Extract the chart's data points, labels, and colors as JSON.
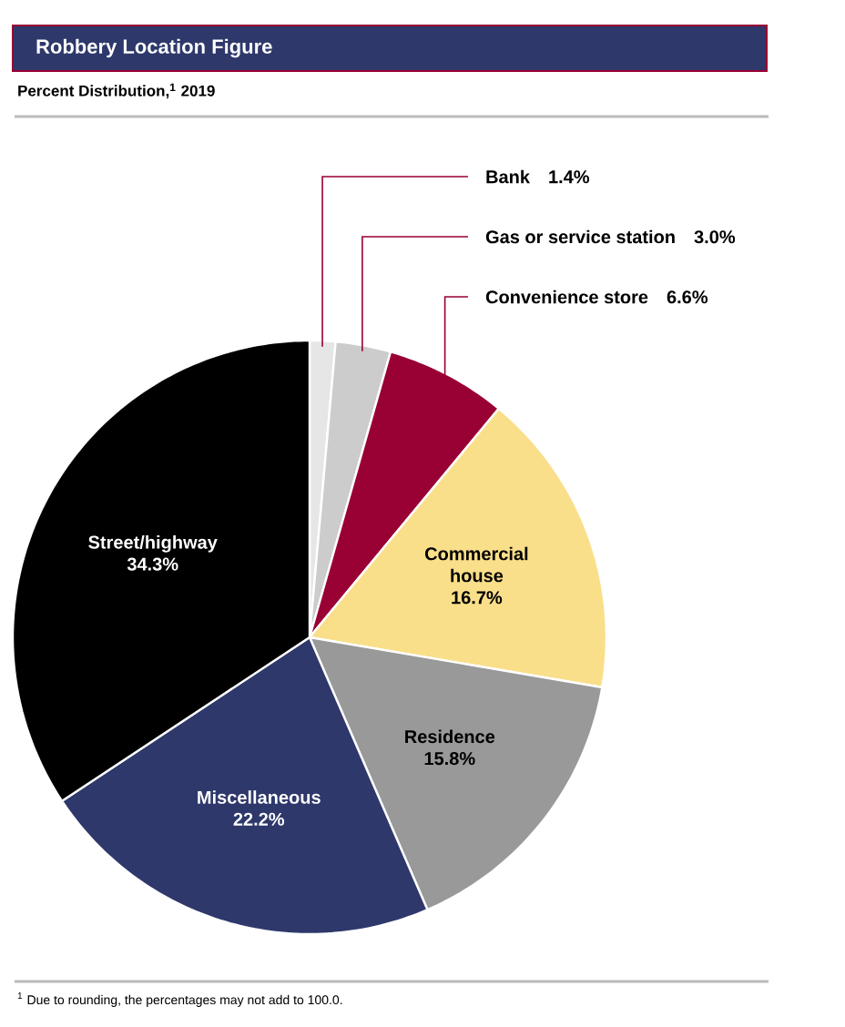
{
  "chart_data": {
    "type": "pie",
    "title": "Robbery Location Figure",
    "subtitle": "Percent Distribution,$^{1}$  2019",
    "categories": [
      "Bank",
      "Gas or service station",
      "Convenience store",
      "Commercial house",
      "Residence",
      "Miscellaneous",
      "Street/highway"
    ],
    "values": [
      1.4,
      3.0,
      6.6,
      16.7,
      15.8,
      22.2,
      34.3
    ],
    "value_labels": [
      "1.4%",
      "3.0%",
      "6.6%",
      "16.7%",
      "15.8%",
      "22.2%",
      "34.3%"
    ],
    "colors": [
      "#e6e6e6",
      "#cccccc",
      "#990033",
      "#fadf8a",
      "#999999",
      "#2e386b",
      "#000000"
    ],
    "annotations": [
      "$^{1}$ Due to rounding, the percentages may not add to 100.0."
    ]
  }
}
